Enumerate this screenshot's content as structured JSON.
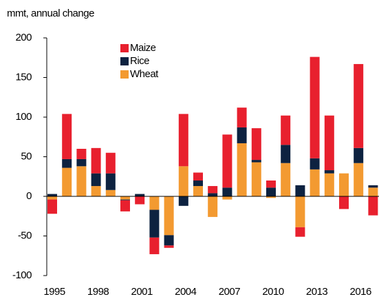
{
  "chart_data": {
    "type": "bar",
    "stacked": true,
    "y_label": "mmt, annual change",
    "categories": [
      "1995",
      null,
      null,
      "1998",
      null,
      null,
      "2001",
      null,
      null,
      "2004",
      null,
      null,
      "2007",
      null,
      null,
      "2010",
      null,
      null,
      "2013",
      null,
      null,
      "2016",
      null
    ],
    "series": [
      {
        "name": "Maize",
        "color": "#e8202e",
        "values": [
          -18,
          57,
          13,
          32,
          26,
          -14,
          -10,
          -21,
          -3,
          66,
          10,
          9,
          67,
          25,
          40,
          9,
          37,
          -12,
          128,
          69,
          -16,
          106,
          -24
        ]
      },
      {
        "name": "Rice",
        "color": "#0d2240",
        "values": [
          3,
          11,
          9,
          16,
          21,
          -1,
          3,
          -35,
          -13,
          -12,
          7,
          4,
          11,
          20,
          3,
          11,
          23,
          14,
          14,
          4,
          0,
          19,
          3
        ]
      },
      {
        "name": "Wheat",
        "color": "#f39a31",
        "values": [
          -4,
          36,
          38,
          13,
          8,
          -4,
          0,
          -17,
          -49,
          38,
          13,
          -26,
          -4,
          67,
          43,
          -2,
          42,
          -39,
          34,
          29,
          29,
          42,
          11
        ]
      }
    ],
    "ylim": [
      -100,
      200
    ],
    "yticks": [
      -100,
      -50,
      0,
      50,
      100,
      150,
      200
    ]
  }
}
